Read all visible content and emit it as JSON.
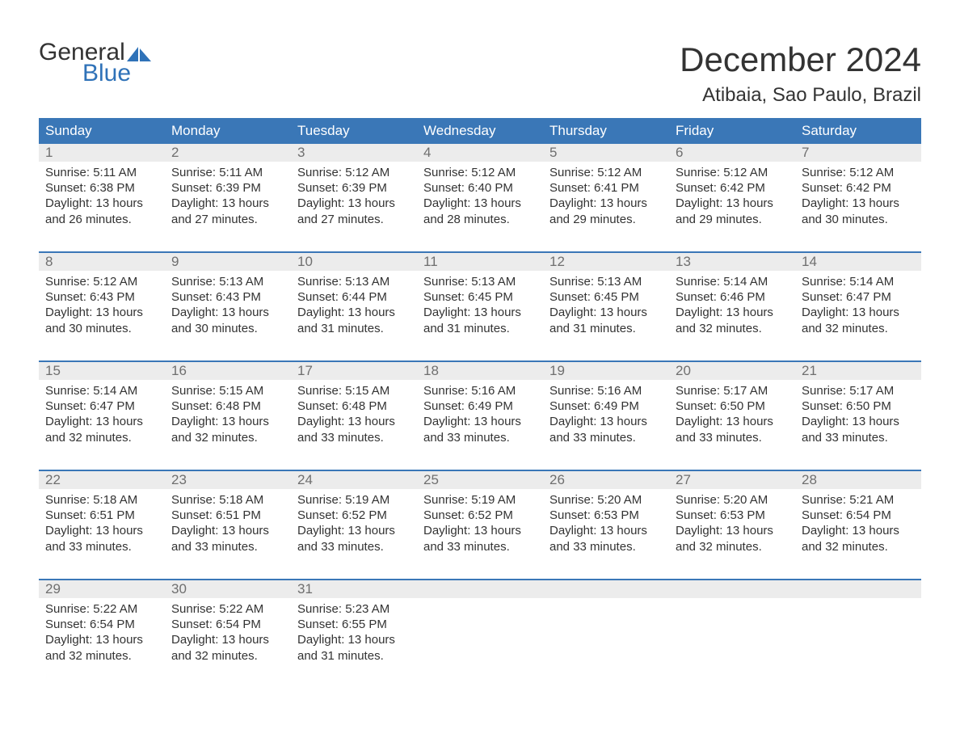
{
  "logo": {
    "text1": "General",
    "text2": "Blue",
    "shape_color": "#2f72b8"
  },
  "title": "December 2024",
  "location": "Atibaia, Sao Paulo, Brazil",
  "colors": {
    "header_bg": "#3a77b7",
    "header_text": "#ffffff",
    "daynum_bg": "#ececec",
    "daynum_text": "#6f6f6f",
    "body_text": "#333333",
    "row_border": "#3a77b7",
    "background": "#ffffff"
  },
  "typography": {
    "title_fontsize": 42,
    "location_fontsize": 24,
    "header_fontsize": 17,
    "daynum_fontsize": 17,
    "daytext_fontsize": 15,
    "font_family": "Arial"
  },
  "day_names": [
    "Sunday",
    "Monday",
    "Tuesday",
    "Wednesday",
    "Thursday",
    "Friday",
    "Saturday"
  ],
  "weeks": [
    [
      {
        "n": "1",
        "sunrise": "5:11 AM",
        "sunset": "6:38 PM",
        "daylight": "13 hours and 26 minutes."
      },
      {
        "n": "2",
        "sunrise": "5:11 AM",
        "sunset": "6:39 PM",
        "daylight": "13 hours and 27 minutes."
      },
      {
        "n": "3",
        "sunrise": "5:12 AM",
        "sunset": "6:39 PM",
        "daylight": "13 hours and 27 minutes."
      },
      {
        "n": "4",
        "sunrise": "5:12 AM",
        "sunset": "6:40 PM",
        "daylight": "13 hours and 28 minutes."
      },
      {
        "n": "5",
        "sunrise": "5:12 AM",
        "sunset": "6:41 PM",
        "daylight": "13 hours and 29 minutes."
      },
      {
        "n": "6",
        "sunrise": "5:12 AM",
        "sunset": "6:42 PM",
        "daylight": "13 hours and 29 minutes."
      },
      {
        "n": "7",
        "sunrise": "5:12 AM",
        "sunset": "6:42 PM",
        "daylight": "13 hours and 30 minutes."
      }
    ],
    [
      {
        "n": "8",
        "sunrise": "5:12 AM",
        "sunset": "6:43 PM",
        "daylight": "13 hours and 30 minutes."
      },
      {
        "n": "9",
        "sunrise": "5:13 AM",
        "sunset": "6:43 PM",
        "daylight": "13 hours and 30 minutes."
      },
      {
        "n": "10",
        "sunrise": "5:13 AM",
        "sunset": "6:44 PM",
        "daylight": "13 hours and 31 minutes."
      },
      {
        "n": "11",
        "sunrise": "5:13 AM",
        "sunset": "6:45 PM",
        "daylight": "13 hours and 31 minutes."
      },
      {
        "n": "12",
        "sunrise": "5:13 AM",
        "sunset": "6:45 PM",
        "daylight": "13 hours and 31 minutes."
      },
      {
        "n": "13",
        "sunrise": "5:14 AM",
        "sunset": "6:46 PM",
        "daylight": "13 hours and 32 minutes."
      },
      {
        "n": "14",
        "sunrise": "5:14 AM",
        "sunset": "6:47 PM",
        "daylight": "13 hours and 32 minutes."
      }
    ],
    [
      {
        "n": "15",
        "sunrise": "5:14 AM",
        "sunset": "6:47 PM",
        "daylight": "13 hours and 32 minutes."
      },
      {
        "n": "16",
        "sunrise": "5:15 AM",
        "sunset": "6:48 PM",
        "daylight": "13 hours and 32 minutes."
      },
      {
        "n": "17",
        "sunrise": "5:15 AM",
        "sunset": "6:48 PM",
        "daylight": "13 hours and 33 minutes."
      },
      {
        "n": "18",
        "sunrise": "5:16 AM",
        "sunset": "6:49 PM",
        "daylight": "13 hours and 33 minutes."
      },
      {
        "n": "19",
        "sunrise": "5:16 AM",
        "sunset": "6:49 PM",
        "daylight": "13 hours and 33 minutes."
      },
      {
        "n": "20",
        "sunrise": "5:17 AM",
        "sunset": "6:50 PM",
        "daylight": "13 hours and 33 minutes."
      },
      {
        "n": "21",
        "sunrise": "5:17 AM",
        "sunset": "6:50 PM",
        "daylight": "13 hours and 33 minutes."
      }
    ],
    [
      {
        "n": "22",
        "sunrise": "5:18 AM",
        "sunset": "6:51 PM",
        "daylight": "13 hours and 33 minutes."
      },
      {
        "n": "23",
        "sunrise": "5:18 AM",
        "sunset": "6:51 PM",
        "daylight": "13 hours and 33 minutes."
      },
      {
        "n": "24",
        "sunrise": "5:19 AM",
        "sunset": "6:52 PM",
        "daylight": "13 hours and 33 minutes."
      },
      {
        "n": "25",
        "sunrise": "5:19 AM",
        "sunset": "6:52 PM",
        "daylight": "13 hours and 33 minutes."
      },
      {
        "n": "26",
        "sunrise": "5:20 AM",
        "sunset": "6:53 PM",
        "daylight": "13 hours and 33 minutes."
      },
      {
        "n": "27",
        "sunrise": "5:20 AM",
        "sunset": "6:53 PM",
        "daylight": "13 hours and 32 minutes."
      },
      {
        "n": "28",
        "sunrise": "5:21 AM",
        "sunset": "6:54 PM",
        "daylight": "13 hours and 32 minutes."
      }
    ],
    [
      {
        "n": "29",
        "sunrise": "5:22 AM",
        "sunset": "6:54 PM",
        "daylight": "13 hours and 32 minutes."
      },
      {
        "n": "30",
        "sunrise": "5:22 AM",
        "sunset": "6:54 PM",
        "daylight": "13 hours and 32 minutes."
      },
      {
        "n": "31",
        "sunrise": "5:23 AM",
        "sunset": "6:55 PM",
        "daylight": "13 hours and 31 minutes."
      },
      null,
      null,
      null,
      null
    ]
  ]
}
